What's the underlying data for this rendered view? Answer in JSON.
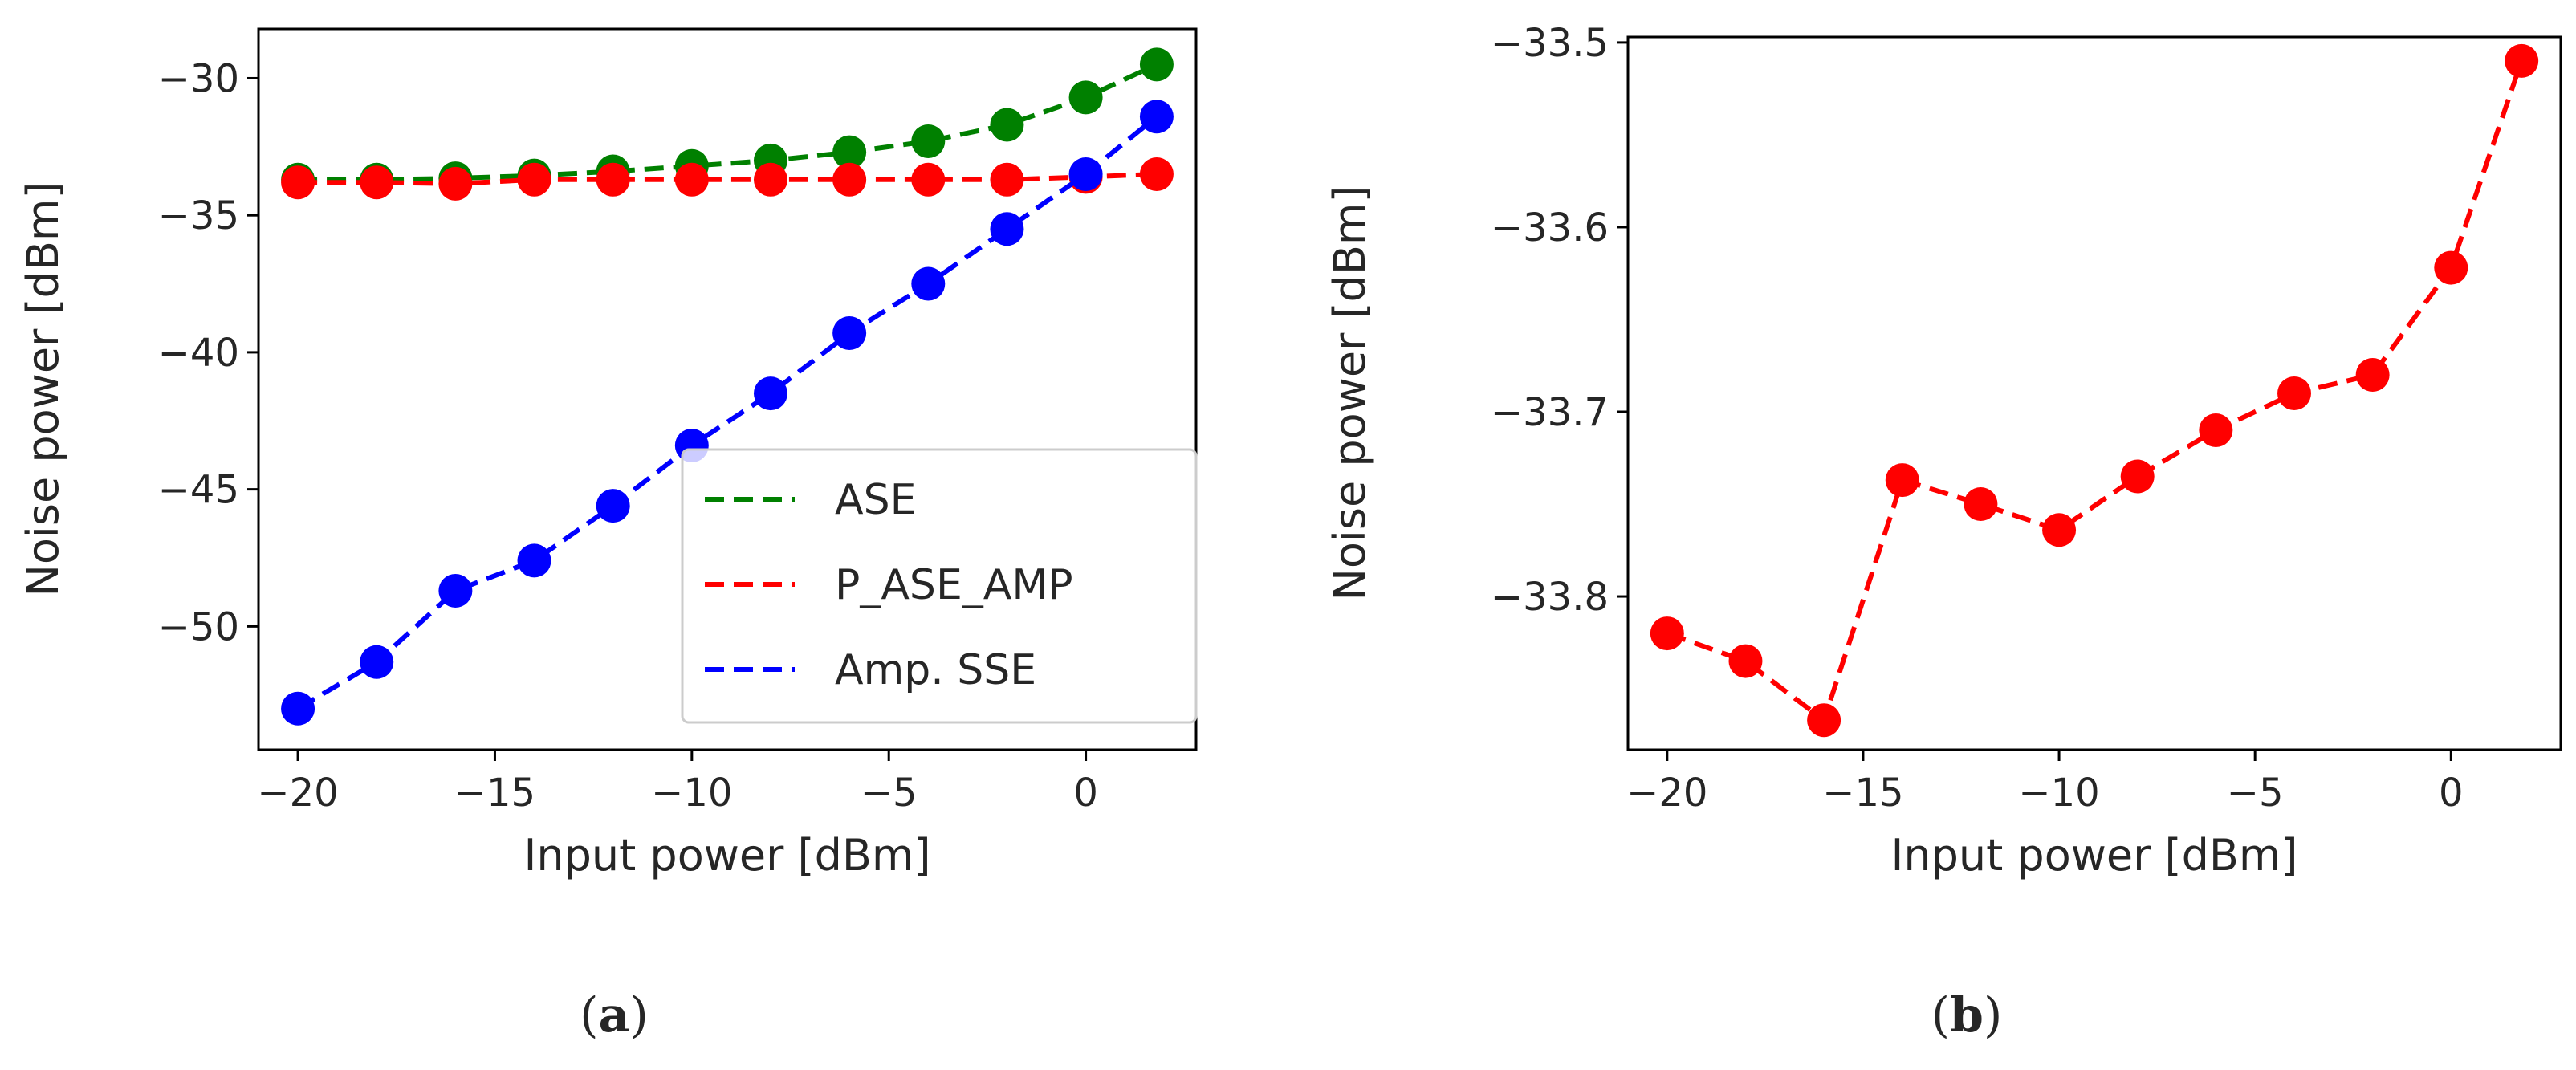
{
  "chart_data": [
    {
      "type": "line",
      "panel_label": "a",
      "xlabel": "Input power [dBm]",
      "ylabel": "Noise power [dBm]",
      "xlim": [
        -21,
        2.8
      ],
      "ylim": [
        -54.5,
        -28.2
      ],
      "xticks": [
        -20,
        -15,
        -10,
        -5,
        0
      ],
      "xtick_labels": [
        "−20",
        "−15",
        "−10",
        "−5",
        "0"
      ],
      "yticks": [
        -30,
        -35,
        -40,
        -45,
        -50
      ],
      "ytick_labels": [
        "−30",
        "−35",
        "−40",
        "−45",
        "−50"
      ],
      "legend_position": "lower-right",
      "x": [
        -20,
        -18,
        -16,
        -14,
        -12,
        -10,
        -8,
        -6,
        -4,
        -2,
        0,
        1.8
      ],
      "series": [
        {
          "name": "ASE",
          "color": "#008000",
          "values": [
            -33.7,
            -33.7,
            -33.65,
            -33.55,
            -33.4,
            -33.2,
            -33.0,
            -32.7,
            -32.3,
            -31.7,
            -30.7,
            -29.5
          ]
        },
        {
          "name": "P_ASE_AMP",
          "color": "#ff0000",
          "values": [
            -33.8,
            -33.8,
            -33.85,
            -33.7,
            -33.7,
            -33.7,
            -33.7,
            -33.7,
            -33.7,
            -33.7,
            -33.6,
            -33.5
          ]
        },
        {
          "name": "Amp. SSE",
          "color": "#0000ff",
          "values": [
            -53.0,
            -51.3,
            -48.7,
            -47.6,
            -45.6,
            -43.4,
            -41.5,
            -39.3,
            -37.5,
            -35.5,
            -33.5,
            -31.4
          ]
        }
      ]
    },
    {
      "type": "line",
      "panel_label": "b",
      "xlabel": "Input power [dBm]",
      "ylabel": "Noise power [dBm]",
      "xlim": [
        -21,
        2.8
      ],
      "ylim": [
        -33.883,
        -33.497
      ],
      "xticks": [
        -20,
        -15,
        -10,
        -5,
        0
      ],
      "xtick_labels": [
        "−20",
        "−15",
        "−10",
        "−5",
        "0"
      ],
      "yticks": [
        -33.5,
        -33.6,
        -33.7,
        -33.8
      ],
      "ytick_labels": [
        "−33.5",
        "−33.6",
        "−33.7",
        "−33.8"
      ],
      "x": [
        -20,
        -18,
        -16,
        -14,
        -12,
        -10,
        -8,
        -6,
        -4,
        -2,
        0,
        1.8
      ],
      "series": [
        {
          "name": "P_ASE_AMP",
          "color": "#ff0000",
          "values": [
            -33.82,
            -33.835,
            -33.867,
            -33.737,
            -33.75,
            -33.764,
            -33.735,
            -33.71,
            -33.69,
            -33.68,
            -33.622,
            -33.51
          ]
        }
      ]
    }
  ]
}
